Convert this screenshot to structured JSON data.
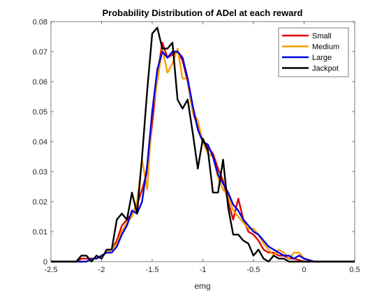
{
  "chart_data": {
    "type": "line",
    "title": "Probability Distribution of ADel at each reward",
    "xlabel": "emg",
    "ylabel": "",
    "xlim": [
      -2.5,
      0.5
    ],
    "ylim": [
      0,
      0.08
    ],
    "xticks": [
      "-2.5",
      "-2",
      "-1.5",
      "-1",
      "-0.5",
      "0",
      "0.5"
    ],
    "yticks": [
      "0",
      "0.01",
      "0.02",
      "0.03",
      "0.04",
      "0.05",
      "0.06",
      "0.07",
      "0.08"
    ],
    "grid": false,
    "legend_position": "top-right",
    "series": [
      {
        "name": "Small",
        "color": "#e00000",
        "x": [
          -2.5,
          -2.25,
          -2.2,
          -2.15,
          -2.1,
          -2.05,
          -2.0,
          -1.95,
          -1.9,
          -1.85,
          -1.8,
          -1.75,
          -1.7,
          -1.65,
          -1.6,
          -1.55,
          -1.5,
          -1.45,
          -1.4,
          -1.35,
          -1.3,
          -1.25,
          -1.2,
          -1.15,
          -1.1,
          -1.05,
          -1.0,
          -0.95,
          -0.9,
          -0.85,
          -0.8,
          -0.75,
          -0.7,
          -0.65,
          -0.6,
          -0.55,
          -0.5,
          -0.45,
          -0.4,
          -0.35,
          -0.3,
          -0.25,
          -0.2,
          -0.15,
          -0.1,
          0.0,
          0.1,
          0.2,
          0.5
        ],
        "values": [
          0,
          0,
          0.001,
          0.001,
          0.001,
          0.001,
          0.002,
          0.003,
          0.004,
          0.007,
          0.012,
          0.014,
          0.016,
          0.019,
          0.024,
          0.03,
          0.046,
          0.062,
          0.073,
          0.068,
          0.069,
          0.07,
          0.067,
          0.06,
          0.05,
          0.045,
          0.04,
          0.038,
          0.036,
          0.031,
          0.027,
          0.02,
          0.014,
          0.021,
          0.014,
          0.01,
          0.009,
          0.007,
          0.004,
          0.003,
          0.003,
          0.002,
          0.002,
          0.001,
          0.001,
          0,
          0,
          0,
          0
        ]
      },
      {
        "name": "Medium",
        "color": "#f5a000",
        "x": [
          -2.5,
          -2.2,
          -2.15,
          -2.1,
          -2.05,
          -2.0,
          -1.95,
          -1.9,
          -1.85,
          -1.8,
          -1.75,
          -1.7,
          -1.65,
          -1.6,
          -1.55,
          -1.5,
          -1.45,
          -1.4,
          -1.35,
          -1.3,
          -1.25,
          -1.2,
          -1.15,
          -1.1,
          -1.05,
          -1.0,
          -0.95,
          -0.9,
          -0.85,
          -0.8,
          -0.75,
          -0.7,
          -0.65,
          -0.6,
          -0.55,
          -0.5,
          -0.45,
          -0.4,
          -0.35,
          -0.3,
          -0.25,
          -0.2,
          -0.15,
          -0.1,
          -0.05,
          0.0,
          0.1,
          0.2,
          0.5
        ],
        "values": [
          0,
          0,
          0,
          0.001,
          0.001,
          0.002,
          0.003,
          0.004,
          0.006,
          0.01,
          0.013,
          0.015,
          0.02,
          0.034,
          0.024,
          0.05,
          0.06,
          0.071,
          0.063,
          0.066,
          0.071,
          0.061,
          0.061,
          0.05,
          0.047,
          0.04,
          0.036,
          0.035,
          0.028,
          0.024,
          0.022,
          0.017,
          0.015,
          0.013,
          0.011,
          0.011,
          0.009,
          0.006,
          0.004,
          0.002,
          0.004,
          0.003,
          0.001,
          0.003,
          0.003,
          0.001,
          0,
          0,
          0
        ]
      },
      {
        "name": "Large",
        "color": "#0000e0",
        "x": [
          -2.5,
          -2.2,
          -2.15,
          -2.1,
          -2.05,
          -2.0,
          -1.95,
          -1.9,
          -1.85,
          -1.8,
          -1.75,
          -1.7,
          -1.65,
          -1.6,
          -1.55,
          -1.5,
          -1.45,
          -1.4,
          -1.35,
          -1.3,
          -1.25,
          -1.2,
          -1.15,
          -1.1,
          -1.05,
          -1.0,
          -0.95,
          -0.9,
          -0.85,
          -0.8,
          -0.75,
          -0.7,
          -0.65,
          -0.6,
          -0.55,
          -0.5,
          -0.45,
          -0.4,
          -0.35,
          -0.3,
          -0.25,
          -0.2,
          -0.15,
          -0.1,
          -0.05,
          0.0,
          0.1,
          0.2,
          0.5
        ],
        "values": [
          0,
          0,
          0,
          0.001,
          0.001,
          0.002,
          0.003,
          0.003,
          0.005,
          0.009,
          0.012,
          0.017,
          0.016,
          0.02,
          0.032,
          0.05,
          0.064,
          0.07,
          0.068,
          0.07,
          0.07,
          0.068,
          0.061,
          0.052,
          0.044,
          0.04,
          0.039,
          0.035,
          0.029,
          0.026,
          0.023,
          0.019,
          0.017,
          0.014,
          0.012,
          0.01,
          0.009,
          0.007,
          0.005,
          0.004,
          0.003,
          0.002,
          0.002,
          0.001,
          0.002,
          0.001,
          0,
          0,
          0
        ]
      },
      {
        "name": "Jackpot",
        "color": "#000000",
        "x": [
          -2.5,
          -2.25,
          -2.2,
          -2.15,
          -2.1,
          -2.05,
          -2.0,
          -1.95,
          -1.9,
          -1.85,
          -1.8,
          -1.75,
          -1.7,
          -1.65,
          -1.6,
          -1.55,
          -1.5,
          -1.45,
          -1.4,
          -1.35,
          -1.3,
          -1.25,
          -1.2,
          -1.15,
          -1.1,
          -1.05,
          -1.0,
          -0.95,
          -0.9,
          -0.85,
          -0.8,
          -0.75,
          -0.7,
          -0.65,
          -0.6,
          -0.55,
          -0.5,
          -0.45,
          -0.4,
          -0.35,
          -0.3,
          -0.25,
          -0.2,
          -0.15,
          -0.1,
          -0.05,
          0.0,
          0.1,
          0.2,
          0.5
        ],
        "values": [
          0,
          0,
          0.002,
          0.002,
          0,
          0.002,
          0.001,
          0.004,
          0.004,
          0.014,
          0.016,
          0.014,
          0.023,
          0.016,
          0.035,
          0.057,
          0.076,
          0.078,
          0.071,
          0.071,
          0.073,
          0.054,
          0.051,
          0.054,
          0.043,
          0.031,
          0.041,
          0.037,
          0.023,
          0.023,
          0.034,
          0.018,
          0.009,
          0.009,
          0.007,
          0.006,
          0.002,
          0.004,
          0.001,
          0,
          0.002,
          0.001,
          0.001,
          0,
          0,
          0,
          0,
          0,
          0,
          0
        ]
      }
    ]
  }
}
